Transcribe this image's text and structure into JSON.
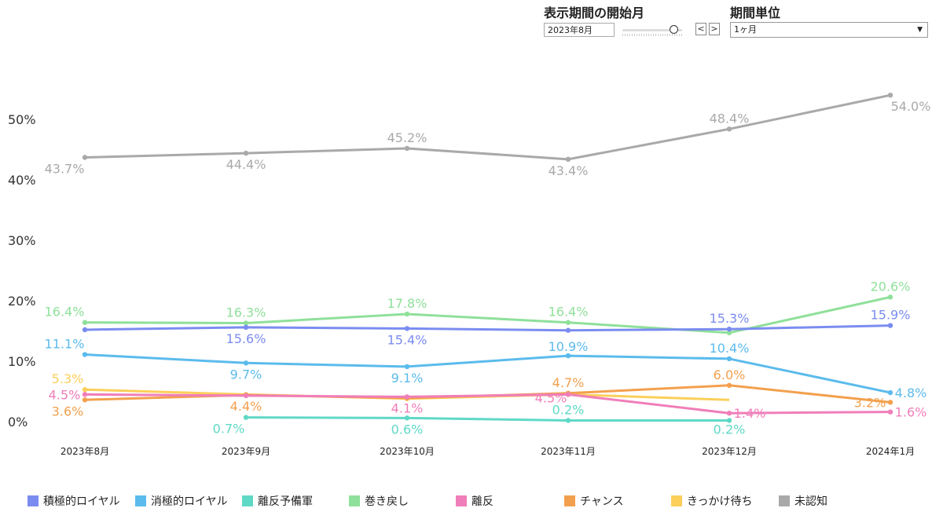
{
  "controls": {
    "start_month_label": "表示期間の開始月",
    "start_month_value": "2023年8月",
    "slider_position": 0.85,
    "prev_label": "<",
    "next_label": ">",
    "period_unit_label": "期間単位",
    "period_unit_value": "1ヶ月",
    "caret": "▼"
  },
  "chart_data": {
    "type": "line",
    "categories": [
      "2023年8月",
      "2023年9月",
      "2023年10月",
      "2023年11月",
      "2023年12月",
      "2024年1月"
    ],
    "y_ticks": [
      "0%",
      "10%",
      "20%",
      "30%",
      "40%",
      "50%"
    ],
    "ylim": [
      0,
      60
    ],
    "grid": false,
    "legend_position": "bottom",
    "series": [
      {
        "name": "積極的ロイヤル",
        "color": "#7b8cf0",
        "values": [
          15.2,
          15.6,
          15.4,
          15.1,
          15.3,
          15.9
        ],
        "labels": [
          "",
          "15.6%",
          "15.4%",
          "",
          "15.3%",
          "15.9%"
        ]
      },
      {
        "name": "消極的ロイヤル",
        "color": "#5bbbec",
        "values": [
          11.1,
          9.7,
          9.1,
          10.9,
          10.4,
          4.8
        ],
        "labels": [
          "11.1%",
          "9.7%",
          "9.1%",
          "10.9%",
          "10.4%",
          "4.8%"
        ]
      },
      {
        "name": "離反予備軍",
        "color": "#5fd9c6",
        "values": [
          null,
          0.7,
          0.6,
          0.2,
          0.2,
          null
        ],
        "labels": [
          "",
          "0.7%",
          "0.6%",
          "0.2%",
          "0.2%",
          ""
        ]
      },
      {
        "name": "巻き戻し",
        "color": "#8fe09a",
        "values": [
          16.4,
          16.3,
          17.8,
          16.4,
          14.7,
          20.6
        ],
        "labels": [
          "16.4%",
          "16.3%",
          "17.8%",
          "16.4%",
          "",
          "20.6%"
        ]
      },
      {
        "name": "離反",
        "color": "#f07eb9",
        "values": [
          4.5,
          4.3,
          4.1,
          4.5,
          1.4,
          1.6
        ],
        "labels": [
          "4.5%",
          "",
          "4.1%",
          "4.5%",
          "1.4%",
          "1.6%"
        ]
      },
      {
        "name": "チャンス",
        "color": "#f3a04e",
        "values": [
          3.6,
          4.4,
          3.9,
          4.7,
          6.0,
          3.2
        ],
        "labels": [
          "3.6%",
          "4.4%",
          "",
          "4.7%",
          "6.0%",
          "3.2%"
        ]
      },
      {
        "name": "きっかけ待ち",
        "color": "#fbcf5a",
        "values": [
          5.3,
          4.5,
          3.8,
          4.5,
          3.6,
          null
        ],
        "labels": [
          "5.3%",
          "",
          "",
          "",
          "",
          ""
        ]
      },
      {
        "name": "未認知",
        "color": "#a9a9a9",
        "values": [
          43.7,
          44.4,
          45.2,
          43.4,
          48.4,
          54.0
        ],
        "labels": [
          "43.7%",
          "44.4%",
          "45.2%",
          "43.4%",
          "48.4%",
          "54.0%"
        ]
      }
    ]
  }
}
